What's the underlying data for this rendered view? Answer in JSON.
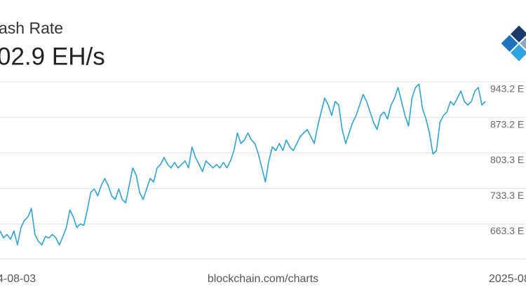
{
  "chart_data": {
    "type": "line",
    "title": "ash Rate",
    "subtitle": "02.9 EH/s",
    "watermark": "blockchain.com/charts",
    "color": "#2ea3d6",
    "grid": true,
    "ylim": [
      594.4,
      950.1
    ],
    "yticks": [
      {
        "value": 663.3,
        "label": "663.3 E"
      },
      {
        "value": 733.3,
        "label": "733.3 E"
      },
      {
        "value": 803.3,
        "label": "803.3 E"
      },
      {
        "value": 873.2,
        "label": "873.2 E"
      },
      {
        "value": 943.2,
        "label": "943.2 E"
      }
    ],
    "categories": [
      "4-08-03",
      null,
      null,
      null,
      null,
      null,
      null,
      null,
      null,
      null,
      null,
      null,
      null,
      null,
      null,
      null,
      null,
      null,
      null,
      null,
      null,
      null,
      null,
      null,
      null,
      null,
      null,
      null,
      null,
      null,
      null,
      null,
      null,
      null,
      null,
      null,
      null,
      null,
      null,
      null,
      null,
      null,
      null,
      null,
      null,
      null,
      null,
      null,
      null,
      null,
      null,
      null,
      null,
      null,
      null,
      null,
      null,
      null,
      null,
      null,
      null,
      null,
      null,
      null,
      null,
      null,
      null,
      null,
      null,
      null,
      null,
      null,
      null,
      null,
      null,
      null,
      null,
      null,
      null,
      null,
      null,
      null,
      null,
      null,
      null,
      null,
      null,
      null,
      null,
      null,
      null,
      null,
      null,
      null,
      null,
      null,
      null,
      null,
      null,
      null,
      null,
      null,
      null,
      null,
      null,
      null,
      null,
      null,
      null,
      null,
      null,
      null,
      null,
      null,
      null,
      null,
      null,
      null,
      null,
      null,
      null,
      null,
      null,
      null,
      null,
      null,
      null,
      null,
      null,
      null,
      null,
      null,
      null,
      null,
      null,
      null,
      null,
      null,
      null,
      "2025-08"
    ],
    "values": [
      649.7,
      635.9,
      642.8,
      633.1,
      649.7,
      622.1,
      656.5,
      670.3,
      677.2,
      693.8,
      642.8,
      629.0,
      622.1,
      638.6,
      635.9,
      642.8,
      635.9,
      622.1,
      638.6,
      656.5,
      691.0,
      677.2,
      656.5,
      663.5,
      660.7,
      691.0,
      725.4,
      732.4,
      718.6,
      739.2,
      753.0,
      739.2,
      718.6,
      711.7,
      732.4,
      711.7,
      704.8,
      739.2,
      773.7,
      759.9,
      725.4,
      711.7,
      732.4,
      753.0,
      746.1,
      773.7,
      780.6,
      794.4,
      780.6,
      773.7,
      784.7,
      773.7,
      780.6,
      787.5,
      773.7,
      815.0,
      794.4,
      780.6,
      766.8,
      787.5,
      780.6,
      773.7,
      780.6,
      773.7,
      784.7,
      773.7,
      787.5,
      808.1,
      842.6,
      821.9,
      828.8,
      842.6,
      828.8,
      821.9,
      801.2,
      773.7,
      746.1,
      787.5,
      815.0,
      808.1,
      821.9,
      808.1,
      828.8,
      815.0,
      808.1,
      821.9,
      835.7,
      842.6,
      849.5,
      835.7,
      821.9,
      856.4,
      883.9,
      911.5,
      897.7,
      877.0,
      904.6,
      897.7,
      849.5,
      821.9,
      842.6,
      863.2,
      877.0,
      897.7,
      918.4,
      904.6,
      883.9,
      863.2,
      849.5,
      877.0,
      883.9,
      870.1,
      897.7,
      911.5,
      932.2,
      904.6,
      877.0,
      856.4,
      911.5,
      932.2,
      939.0,
      890.8,
      870.1,
      842.6,
      801.2,
      808.1,
      863.2,
      877.0,
      883.9,
      904.6,
      897.7,
      911.5,
      925.3,
      904.6,
      897.7,
      904.6,
      925.3,
      932.2,
      897.7,
      904.6
    ]
  }
}
